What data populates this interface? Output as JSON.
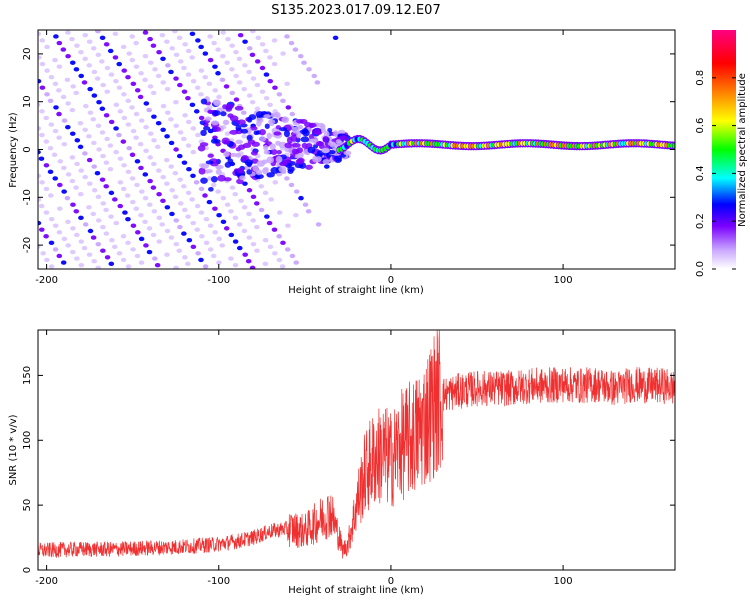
{
  "title": "S135.2023.017.09.12.E07",
  "chart_data": [
    {
      "type": "heatmap",
      "xlabel": "Height of straight line (km)",
      "ylabel": "Frequency (Hz)",
      "xlim": [
        -205,
        165
      ],
      "ylim": [
        -25,
        25
      ],
      "x_ticks": [
        -200,
        -100,
        0,
        100
      ],
      "y_ticks": [
        -20,
        -10,
        0,
        10,
        20
      ],
      "colorbar": {
        "label": "Normalized spectral amplitude",
        "ticks": [
          0.0,
          0.2,
          0.4,
          0.6,
          0.8
        ],
        "range": [
          0,
          1
        ],
        "colormap": [
          "#ffffff",
          "#c9a6ff",
          "#7a00ff",
          "#0000ff",
          "#00ffff",
          "#00ff00",
          "#ffff00",
          "#ff8000",
          "#ff0000",
          "#ff0080"
        ]
      },
      "features": [
        {
          "name": "diagonal streaks",
          "x_range": [
            -205,
            -30
          ],
          "slope_hz_per_km": -0.55,
          "amplitude": 0.3
        },
        {
          "name": "tonal line",
          "x_range": [
            -30,
            165
          ],
          "frequency_hz": 1,
          "amplitude_peak": 0.85
        }
      ]
    },
    {
      "type": "line",
      "xlabel": "Height of straight line (km)",
      "ylabel": "SNR (10 * v/v)",
      "xlim": [
        -205,
        165
      ],
      "ylim": [
        0,
        185
      ],
      "x_ticks": [
        -200,
        -100,
        0,
        100
      ],
      "y_ticks": [
        0,
        50,
        100,
        150
      ],
      "color": "#f03030",
      "series": [
        {
          "x": [
            -205,
            -180,
            -160,
            -140,
            -120,
            -100,
            -90,
            -80,
            -70,
            -60,
            -50,
            -40,
            -35,
            -30,
            -28,
            -25,
            -20,
            -15,
            -10,
            -5,
            0,
            5,
            10,
            15,
            20,
            25,
            30,
            40,
            50,
            60,
            70,
            80,
            90,
            100,
            110,
            120,
            130,
            140,
            150,
            160,
            165
          ],
          "y": [
            15,
            16,
            16,
            17,
            18,
            20,
            22,
            25,
            30,
            32,
            30,
            40,
            45,
            25,
            15,
            20,
            50,
            75,
            85,
            90,
            85,
            95,
            100,
            105,
            115,
            128,
            135,
            138,
            140,
            140,
            140,
            142,
            142,
            143,
            142,
            143,
            140,
            143,
            142,
            142,
            140
          ]
        }
      ]
    }
  ]
}
